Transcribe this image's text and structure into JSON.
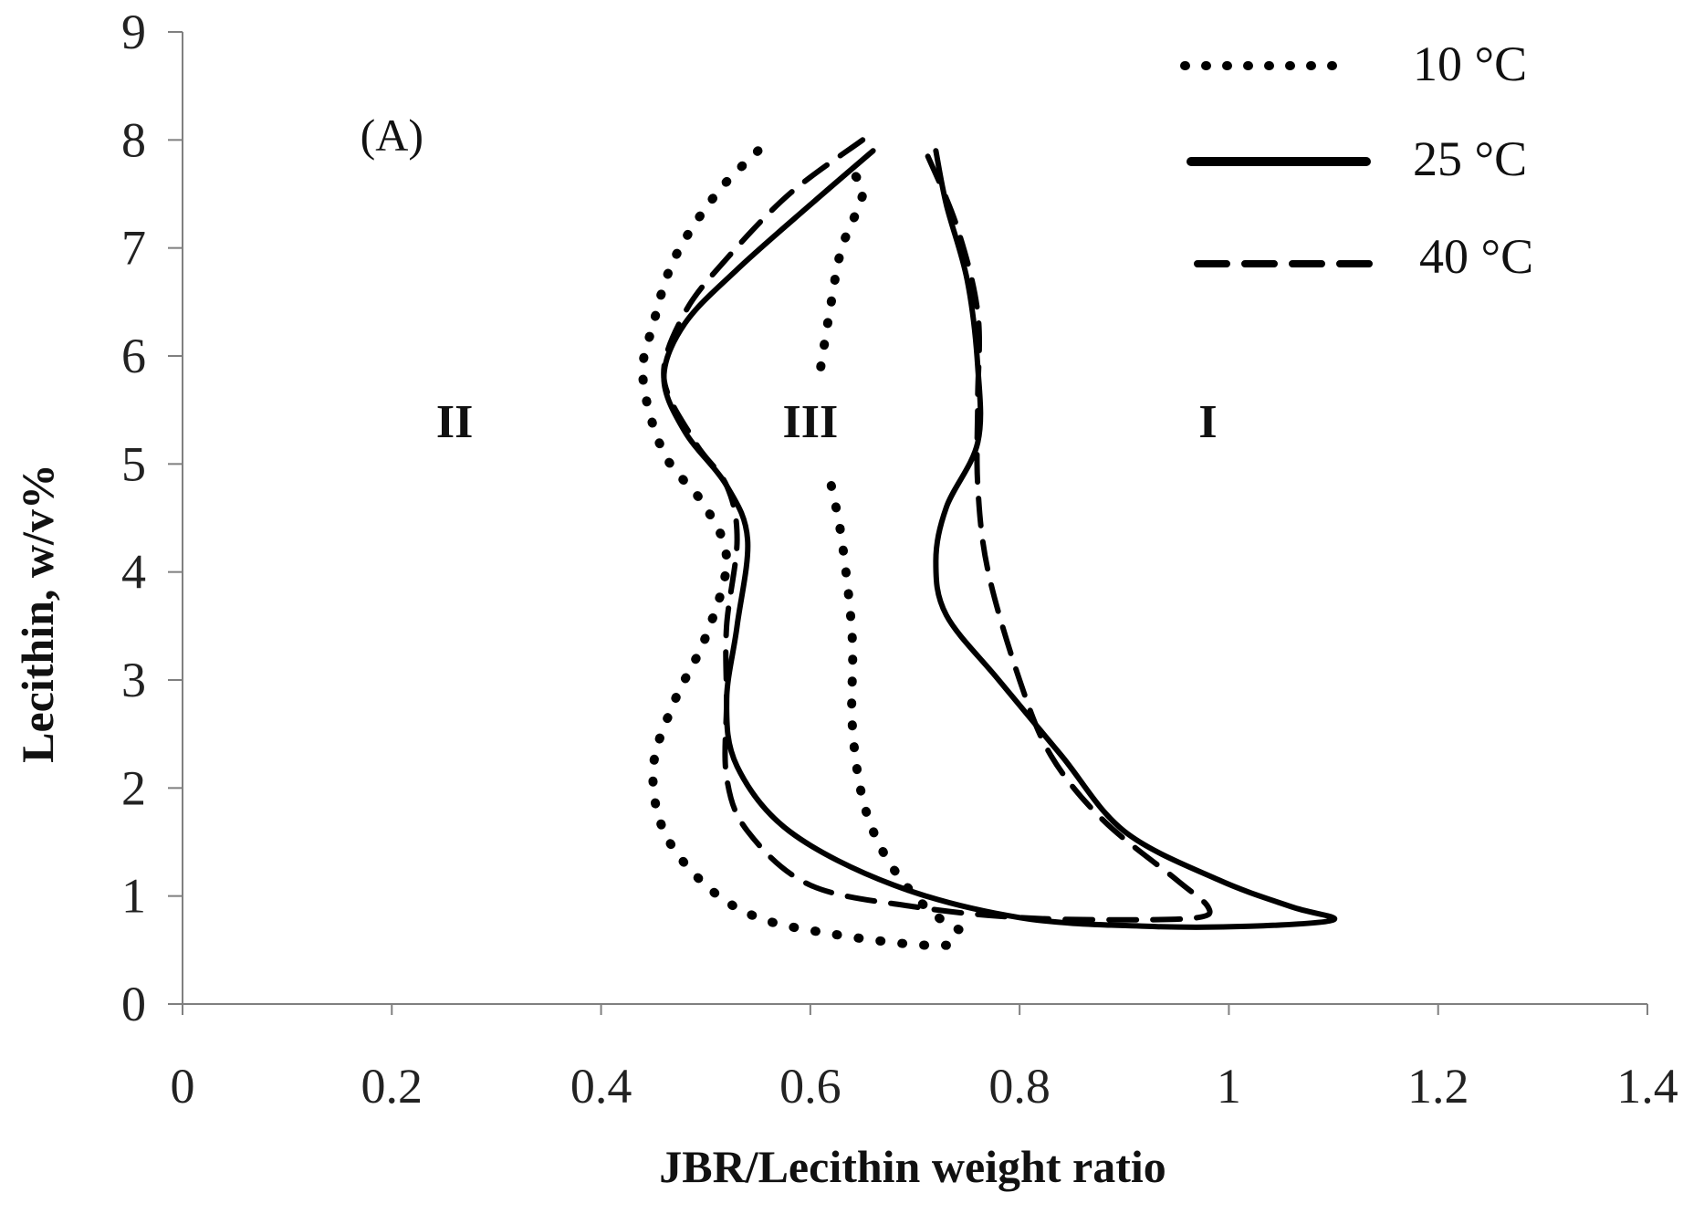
{
  "chart_data": {
    "type": "line",
    "xlabel": "JBR/Lecithin weight ratio",
    "ylabel": "Lecithin, w/v%",
    "xlim": [
      0,
      1.4
    ],
    "ylim": [
      0,
      9
    ],
    "x_ticks": [
      "0",
      "0.2",
      "0.4",
      "0.6",
      "0.8",
      "1",
      "1.2",
      "1.4"
    ],
    "y_ticks": [
      "0",
      "1",
      "2",
      "3",
      "4",
      "5",
      "6",
      "7",
      "8",
      "9"
    ],
    "grid": false,
    "legend": "top-right",
    "annotations": [
      {
        "text": "(A)",
        "x": 0.2,
        "y": 7.9
      },
      {
        "text": "II",
        "x": 0.26,
        "y": 5.25
      },
      {
        "text": "III",
        "x": 0.6,
        "y": 5.25
      },
      {
        "text": "I",
        "x": 0.98,
        "y": 5.25
      }
    ],
    "series": [
      {
        "name": "10 °C",
        "style": "dotted",
        "segments": [
          [
            [
              0.55,
              7.9
            ],
            [
              0.51,
              7.5
            ],
            [
              0.47,
              6.9
            ],
            [
              0.45,
              6.3
            ],
            [
              0.44,
              5.8
            ],
            [
              0.46,
              5.1
            ],
            [
              0.5,
              4.6
            ],
            [
              0.52,
              4.1
            ],
            [
              0.5,
              3.4
            ],
            [
              0.47,
              2.8
            ],
            [
              0.45,
              2.2
            ],
            [
              0.46,
              1.6
            ],
            [
              0.5,
              1.1
            ],
            [
              0.55,
              0.8
            ],
            [
              0.62,
              0.65
            ],
            [
              0.7,
              0.55
            ],
            [
              0.75,
              0.55
            ]
          ],
          [
            [
              0.61,
              5.9
            ],
            [
              0.62,
              6.5
            ],
            [
              0.63,
              7.0
            ],
            [
              0.65,
              7.5
            ],
            [
              0.64,
              7.7
            ]
          ],
          [
            [
              0.62,
              4.8
            ],
            [
              0.63,
              4.3
            ],
            [
              0.64,
              3.4
            ],
            [
              0.64,
              2.6
            ],
            [
              0.65,
              1.9
            ],
            [
              0.67,
              1.4
            ],
            [
              0.7,
              1.0
            ],
            [
              0.73,
              0.75
            ],
            [
              0.76,
              0.62
            ]
          ]
        ]
      },
      {
        "name": "25 °C",
        "style": "solid",
        "segments": [
          [
            [
              0.66,
              7.9
            ],
            [
              0.6,
              7.4
            ],
            [
              0.53,
              6.8
            ],
            [
              0.48,
              6.3
            ],
            [
              0.46,
              5.8
            ],
            [
              0.48,
              5.3
            ],
            [
              0.52,
              4.8
            ],
            [
              0.54,
              4.3
            ],
            [
              0.53,
              3.5
            ],
            [
              0.52,
              2.8
            ],
            [
              0.53,
              2.2
            ],
            [
              0.58,
              1.6
            ],
            [
              0.68,
              1.1
            ],
            [
              0.8,
              0.8
            ],
            [
              0.92,
              0.72
            ],
            [
              1.02,
              0.72
            ],
            [
              1.1,
              0.78
            ],
            [
              1.06,
              0.9
            ],
            [
              0.99,
              1.15
            ],
            [
              0.9,
              1.6
            ],
            [
              0.84,
              2.3
            ],
            [
              0.78,
              3.0
            ],
            [
              0.73,
              3.6
            ],
            [
              0.72,
              4.1
            ],
            [
              0.73,
              4.6
            ],
            [
              0.76,
              5.2
            ],
            [
              0.76,
              5.9
            ],
            [
              0.75,
              6.7
            ],
            [
              0.73,
              7.4
            ],
            [
              0.72,
              7.9
            ]
          ]
        ]
      },
      {
        "name": "40 °C",
        "style": "dashed",
        "segments": [
          [
            [
              0.65,
              8.0
            ],
            [
              0.58,
              7.5
            ],
            [
              0.52,
              6.9
            ],
            [
              0.48,
              6.4
            ],
            [
              0.46,
              5.8
            ],
            [
              0.49,
              5.2
            ],
            [
              0.52,
              4.8
            ],
            [
              0.53,
              4.3
            ],
            [
              0.52,
              3.5
            ],
            [
              0.52,
              2.8
            ],
            [
              0.52,
              2.1
            ],
            [
              0.54,
              1.6
            ],
            [
              0.6,
              1.1
            ],
            [
              0.7,
              0.9
            ],
            [
              0.8,
              0.8
            ],
            [
              0.9,
              0.78
            ],
            [
              0.97,
              0.8
            ],
            [
              0.98,
              0.9
            ],
            [
              0.95,
              1.15
            ],
            [
              0.88,
              1.7
            ],
            [
              0.83,
              2.3
            ],
            [
              0.8,
              3.0
            ],
            [
              0.77,
              4.0
            ],
            [
              0.76,
              4.8
            ],
            [
              0.76,
              5.6
            ],
            [
              0.76,
              6.4
            ],
            [
              0.74,
              7.2
            ],
            [
              0.71,
              7.9
            ]
          ]
        ]
      }
    ]
  }
}
